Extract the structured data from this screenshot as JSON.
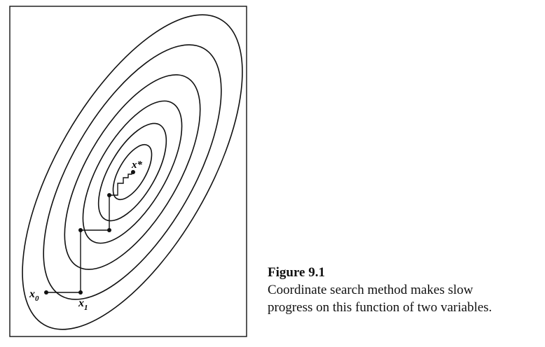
{
  "figure": {
    "labels": {
      "x_star": "x*",
      "x0": "x",
      "x0_sub": "0",
      "x1": "x",
      "x1_sub": "1"
    },
    "contour_count": 6,
    "path_steps": 9
  },
  "caption": {
    "label": "Figure 9.1",
    "lines": [
      "Coordinate search method makes slow",
      "progress on this function of two variables."
    ]
  }
}
